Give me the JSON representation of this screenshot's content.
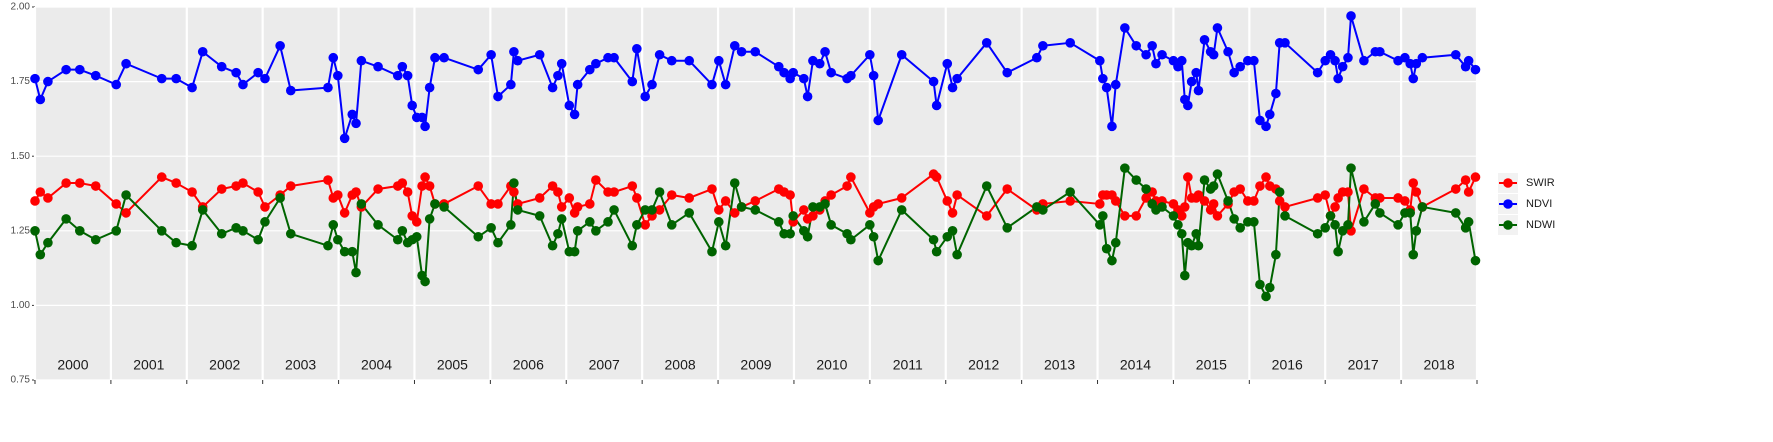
{
  "chart_data": {
    "type": "line",
    "x": [
      2000.0,
      2000.07,
      2000.17,
      2000.41,
      2000.59,
      2000.8,
      2001.07,
      2001.2,
      2001.67,
      2001.86,
      2002.07,
      2002.21,
      2002.46,
      2002.65,
      2002.74,
      2002.94,
      2003.03,
      2003.23,
      2003.37,
      2003.86,
      2003.93,
      2003.99,
      2004.08,
      2004.18,
      2004.23,
      2004.3,
      2004.52,
      2004.78,
      2004.84,
      2004.91,
      2004.97,
      2005.03,
      2005.1,
      2005.14,
      2005.2,
      2005.27,
      2005.39,
      2005.84,
      2006.01,
      2006.1,
      2006.27,
      2006.31,
      2006.36,
      2006.65,
      2006.82,
      2006.89,
      2006.94,
      2007.04,
      2007.11,
      2007.15,
      2007.31,
      2007.39,
      2007.55,
      2007.63,
      2007.87,
      2007.93,
      2008.04,
      2008.13,
      2008.23,
      2008.39,
      2008.62,
      2008.92,
      2009.01,
      2009.1,
      2009.22,
      2009.31,
      2009.49,
      2009.8,
      2009.87,
      2009.95,
      2009.99,
      2010.13,
      2010.18,
      2010.25,
      2010.34,
      2010.41,
      2010.49,
      2010.7,
      2010.75,
      2011.0,
      2011.05,
      2011.11,
      2011.42,
      2011.84,
      2011.88,
      2012.02,
      2012.09,
      2012.15,
      2012.54,
      2012.81,
      2013.2,
      2013.28,
      2013.64,
      2014.03,
      2014.07,
      2014.12,
      2014.19,
      2014.24,
      2014.36,
      2014.51,
      2014.64,
      2014.72,
      2014.77,
      2014.85,
      2015.0,
      2015.06,
      2015.11,
      2015.15,
      2015.19,
      2015.24,
      2015.3,
      2015.33,
      2015.41,
      2015.49,
      2015.53,
      2015.58,
      2015.72,
      2015.8,
      2015.88,
      2015.98,
      2016.06,
      2016.14,
      2016.22,
      2016.27,
      2016.35,
      2016.4,
      2016.47,
      2016.9,
      2017.0,
      2017.07,
      2017.13,
      2017.17,
      2017.23,
      2017.3,
      2017.34,
      2017.51,
      2017.66,
      2017.72,
      2017.96,
      2018.05,
      2018.12,
      2018.16,
      2018.2,
      2018.28,
      2018.72,
      2018.85,
      2018.89,
      2018.98
    ],
    "series": [
      {
        "name": "SWIR",
        "color": "#ff0000",
        "values": [
          1.35,
          1.38,
          1.36,
          1.41,
          1.41,
          1.4,
          1.34,
          1.31,
          1.43,
          1.41,
          1.38,
          1.33,
          1.39,
          1.4,
          1.41,
          1.38,
          1.33,
          1.37,
          1.4,
          1.42,
          1.36,
          1.37,
          1.31,
          1.37,
          1.38,
          1.33,
          1.39,
          1.4,
          1.41,
          1.38,
          1.3,
          1.28,
          1.4,
          1.43,
          1.4,
          1.34,
          1.34,
          1.4,
          1.34,
          1.34,
          1.4,
          1.38,
          1.34,
          1.36,
          1.4,
          1.38,
          1.33,
          1.36,
          1.31,
          1.33,
          1.34,
          1.42,
          1.38,
          1.38,
          1.4,
          1.36,
          1.27,
          1.3,
          1.32,
          1.37,
          1.36,
          1.39,
          1.32,
          1.35,
          1.31,
          1.33,
          1.35,
          1.39,
          1.38,
          1.37,
          1.28,
          1.32,
          1.29,
          1.3,
          1.32,
          1.35,
          1.37,
          1.4,
          1.43,
          1.31,
          1.33,
          1.34,
          1.36,
          1.44,
          1.43,
          1.35,
          1.31,
          1.37,
          1.3,
          1.39,
          1.32,
          1.34,
          1.35,
          1.34,
          1.37,
          1.37,
          1.37,
          1.35,
          1.3,
          1.3,
          1.36,
          1.38,
          1.35,
          1.35,
          1.34,
          1.32,
          1.3,
          1.33,
          1.43,
          1.36,
          1.36,
          1.37,
          1.35,
          1.32,
          1.34,
          1.3,
          1.34,
          1.38,
          1.39,
          1.35,
          1.35,
          1.4,
          1.43,
          1.4,
          1.39,
          1.35,
          1.33,
          1.36,
          1.37,
          1.3,
          1.33,
          1.36,
          1.38,
          1.38,
          1.25,
          1.39,
          1.36,
          1.36,
          1.36,
          1.35,
          1.32,
          1.41,
          1.38,
          1.33,
          1.39,
          1.42,
          1.38,
          1.43
        ]
      },
      {
        "name": "NDVI",
        "color": "#0000ff",
        "values": [
          1.76,
          1.69,
          1.75,
          1.79,
          1.79,
          1.77,
          1.74,
          1.81,
          1.76,
          1.76,
          1.73,
          1.85,
          1.8,
          1.78,
          1.74,
          1.78,
          1.76,
          1.87,
          1.72,
          1.73,
          1.83,
          1.77,
          1.56,
          1.64,
          1.61,
          1.82,
          1.8,
          1.77,
          1.8,
          1.77,
          1.67,
          1.63,
          1.63,
          1.6,
          1.73,
          1.83,
          1.83,
          1.79,
          1.84,
          1.7,
          1.74,
          1.85,
          1.82,
          1.84,
          1.73,
          1.77,
          1.81,
          1.67,
          1.64,
          1.74,
          1.79,
          1.81,
          1.83,
          1.83,
          1.75,
          1.86,
          1.7,
          1.74,
          1.84,
          1.82,
          1.82,
          1.74,
          1.82,
          1.74,
          1.87,
          1.85,
          1.85,
          1.8,
          1.78,
          1.76,
          1.78,
          1.76,
          1.7,
          1.82,
          1.81,
          1.85,
          1.78,
          1.76,
          1.77,
          1.84,
          1.77,
          1.62,
          1.84,
          1.75,
          1.67,
          1.81,
          1.73,
          1.76,
          1.88,
          1.78,
          1.83,
          1.87,
          1.88,
          1.82,
          1.76,
          1.73,
          1.6,
          1.74,
          1.93,
          1.87,
          1.84,
          1.87,
          1.81,
          1.84,
          1.82,
          1.8,
          1.82,
          1.69,
          1.67,
          1.75,
          1.78,
          1.72,
          1.89,
          1.85,
          1.84,
          1.93,
          1.85,
          1.78,
          1.8,
          1.82,
          1.82,
          1.62,
          1.6,
          1.64,
          1.71,
          1.88,
          1.88,
          1.78,
          1.82,
          1.84,
          1.82,
          1.76,
          1.8,
          1.83,
          1.97,
          1.82,
          1.85,
          1.85,
          1.82,
          1.83,
          1.81,
          1.76,
          1.81,
          1.83,
          1.84,
          1.8,
          1.82,
          1.79
        ]
      },
      {
        "name": "NDWI",
        "color": "#006400",
        "values": [
          1.25,
          1.17,
          1.21,
          1.29,
          1.25,
          1.22,
          1.25,
          1.37,
          1.25,
          1.21,
          1.2,
          1.32,
          1.24,
          1.26,
          1.25,
          1.22,
          1.28,
          1.36,
          1.24,
          1.2,
          1.27,
          1.22,
          1.18,
          1.18,
          1.11,
          1.34,
          1.27,
          1.22,
          1.25,
          1.21,
          1.22,
          1.23,
          1.1,
          1.08,
          1.29,
          1.34,
          1.33,
          1.23,
          1.26,
          1.21,
          1.27,
          1.41,
          1.32,
          1.3,
          1.2,
          1.24,
          1.29,
          1.18,
          1.18,
          1.25,
          1.28,
          1.25,
          1.28,
          1.32,
          1.2,
          1.27,
          1.32,
          1.32,
          1.38,
          1.27,
          1.31,
          1.18,
          1.28,
          1.2,
          1.41,
          1.33,
          1.32,
          1.28,
          1.24,
          1.24,
          1.3,
          1.25,
          1.23,
          1.33,
          1.33,
          1.34,
          1.27,
          1.24,
          1.22,
          1.27,
          1.23,
          1.15,
          1.32,
          1.22,
          1.18,
          1.23,
          1.25,
          1.17,
          1.4,
          1.26,
          1.33,
          1.32,
          1.38,
          1.27,
          1.3,
          1.19,
          1.15,
          1.21,
          1.46,
          1.42,
          1.39,
          1.34,
          1.32,
          1.33,
          1.3,
          1.27,
          1.24,
          1.1,
          1.21,
          1.2,
          1.24,
          1.2,
          1.42,
          1.39,
          1.4,
          1.44,
          1.35,
          1.29,
          1.26,
          1.28,
          1.28,
          1.07,
          1.03,
          1.06,
          1.17,
          1.38,
          1.3,
          1.24,
          1.26,
          1.3,
          1.27,
          1.18,
          1.25,
          1.27,
          1.46,
          1.28,
          1.34,
          1.31,
          1.27,
          1.31,
          1.31,
          1.17,
          1.25,
          1.33,
          1.31,
          1.26,
          1.28,
          1.15
        ]
      }
    ],
    "panel_labels": [
      "2000",
      "2001",
      "2002",
      "2003",
      "2004",
      "2005",
      "2006",
      "2007",
      "2008",
      "2009",
      "2010",
      "2011",
      "2012",
      "2013",
      "2014",
      "2015",
      "2016",
      "2017",
      "2018"
    ],
    "xlim": [
      2000,
      2019
    ],
    "xticks": [
      2000,
      2001,
      2002,
      2003,
      2004,
      2005,
      2006,
      2007,
      2008,
      2009,
      2010,
      2011,
      2012,
      2013,
      2014,
      2015,
      2016,
      2017,
      2018,
      2019
    ],
    "ylim": [
      0.75,
      2.0
    ],
    "yticks": [
      0.75,
      {
        "value": 1,
        "label": "1.00"
      },
      1.25,
      {
        "value": 1.5,
        "label": "1.50"
      },
      1.75,
      {
        "value": 2,
        "label": "2.00"
      }
    ],
    "grid": true,
    "legend": "right"
  }
}
